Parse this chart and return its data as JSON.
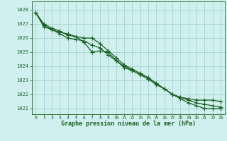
{
  "title": "Graphe pression niveau de la mer (hPa)",
  "background_color": "#cff0ee",
  "grid_color": "#9ecfca",
  "line_color": "#1a6020",
  "series": [
    [
      1027.8,
      1027.0,
      1026.7,
      1026.5,
      1026.2,
      1026.1,
      1026.0,
      1026.0,
      1025.6,
      1025.1,
      1024.6,
      1024.1,
      1023.8,
      1023.5,
      1023.2,
      1022.8,
      1022.4,
      1022.0,
      1021.8,
      1021.7,
      1021.6,
      1021.6,
      1021.6,
      1021.5
    ],
    [
      1027.8,
      1026.9,
      1026.6,
      1026.3,
      1026.0,
      1025.9,
      1025.8,
      1025.5,
      1025.3,
      1024.8,
      1024.4,
      1024.0,
      1023.7,
      1023.4,
      1023.1,
      1022.7,
      1022.4,
      1022.0,
      1021.8,
      1021.6,
      1021.4,
      1021.3,
      1021.2,
      1021.1
    ],
    [
      1027.8,
      1026.8,
      1026.6,
      1026.4,
      1026.3,
      1026.1,
      1025.7,
      1025.0,
      1025.1,
      1025.0,
      1024.4,
      1023.9,
      1023.7,
      1023.4,
      1023.1,
      1022.7,
      1022.4,
      1022.0,
      1021.7,
      1021.4,
      1021.2,
      1021.0,
      1021.0,
      1021.0
    ]
  ],
  "ylim": [
    1020.6,
    1028.6
  ],
  "yticks": [
    1021,
    1022,
    1023,
    1024,
    1025,
    1026,
    1027,
    1028
  ],
  "xticks": [
    0,
    1,
    2,
    3,
    4,
    5,
    6,
    7,
    8,
    9,
    10,
    11,
    12,
    13,
    14,
    15,
    16,
    17,
    18,
    19,
    20,
    21,
    22,
    23
  ],
  "marker": "+",
  "markersize": 4,
  "linewidth": 0.9
}
